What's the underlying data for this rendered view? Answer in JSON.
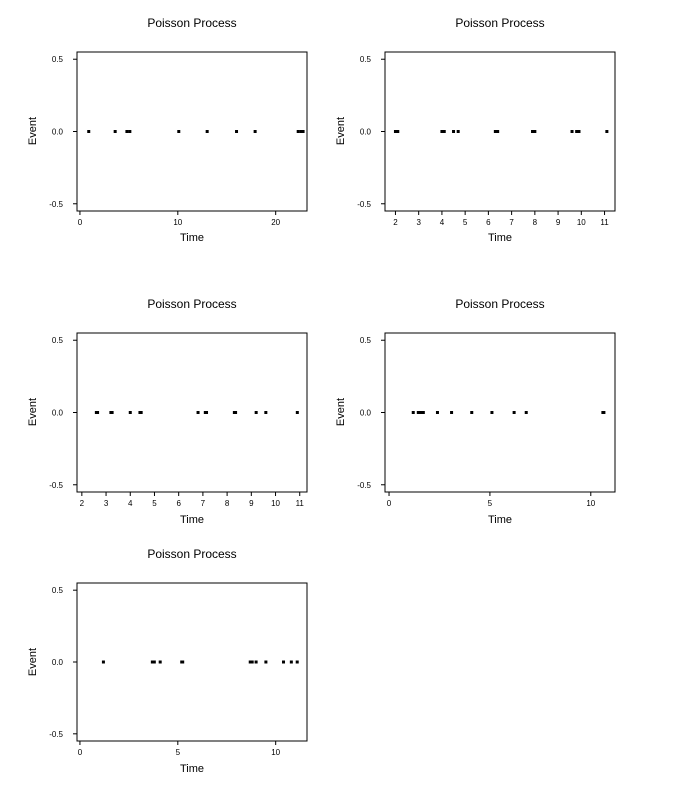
{
  "chart_data": [
    {
      "type": "scatter",
      "title": "Poisson Process",
      "xlabel": "Time",
      "ylabel": "Event",
      "xlim": [
        -0.3,
        23.2
      ],
      "ylim": [
        -0.55,
        0.55
      ],
      "xticks": [
        0,
        10,
        20
      ],
      "yticks": [
        0.5,
        0.0,
        -0.5
      ],
      "ytick_labels": [
        "0.5",
        "0.0",
        "-0.5"
      ],
      "x": [
        0.9,
        3.6,
        4.8,
        5.1,
        10.1,
        13.0,
        16.0,
        17.9,
        22.3,
        22.6,
        22.8
      ],
      "y": [
        0,
        0,
        0,
        0,
        0,
        0,
        0,
        0,
        0,
        0,
        0
      ]
    },
    {
      "type": "scatter",
      "title": "Poisson Process",
      "xlabel": "Time",
      "ylabel": "Event",
      "xlim": [
        1.55,
        11.45
      ],
      "ylim": [
        -0.55,
        0.55
      ],
      "xticks": [
        2,
        3,
        4,
        5,
        6,
        7,
        8,
        9,
        10,
        11
      ],
      "yticks": [
        0.5,
        0.0,
        -0.5
      ],
      "ytick_labels": [
        "0.5",
        "0.0",
        "-0.5"
      ],
      "x": [
        2.0,
        2.1,
        4.0,
        4.1,
        4.5,
        4.7,
        6.3,
        6.4,
        7.9,
        8.0,
        9.6,
        9.8,
        9.9,
        11.1
      ],
      "y": [
        0,
        0,
        0,
        0,
        0,
        0,
        0,
        0,
        0,
        0,
        0,
        0,
        0,
        0
      ]
    },
    {
      "type": "scatter",
      "title": "Poisson Process",
      "xlabel": "Time",
      "ylabel": "Event",
      "xlim": [
        1.8,
        11.3
      ],
      "ylim": [
        -0.55,
        0.55
      ],
      "xticks": [
        2,
        3,
        4,
        5,
        6,
        7,
        8,
        9,
        10,
        11
      ],
      "yticks": [
        0.5,
        0.0,
        -0.5
      ],
      "ytick_labels": [
        "0.5",
        "0.0",
        "-0.5"
      ],
      "x": [
        2.6,
        2.65,
        3.2,
        3.25,
        4.0,
        4.4,
        4.45,
        6.8,
        7.1,
        7.15,
        8.3,
        8.35,
        9.2,
        9.6,
        10.9
      ],
      "y": [
        0,
        0,
        0,
        0,
        0,
        0,
        0,
        0,
        0,
        0,
        0,
        0,
        0,
        0,
        0
      ]
    },
    {
      "type": "scatter",
      "title": "Poisson Process",
      "xlabel": "Time",
      "ylabel": "Event",
      "xlim": [
        -0.2,
        11.2
      ],
      "ylim": [
        -0.55,
        0.55
      ],
      "xticks": [
        0,
        5,
        10
      ],
      "yticks": [
        0.5,
        0.0,
        -0.5
      ],
      "ytick_labels": [
        "0.5",
        "0.0",
        "-0.5"
      ],
      "x": [
        1.2,
        1.45,
        1.55,
        1.6,
        1.7,
        2.4,
        3.1,
        4.1,
        5.1,
        6.2,
        6.8,
        10.6,
        10.65
      ],
      "y": [
        0,
        0,
        0,
        0,
        0,
        0,
        0,
        0,
        0,
        0,
        0,
        0,
        0
      ]
    },
    {
      "type": "scatter",
      "title": "Poisson Process",
      "xlabel": "Time",
      "ylabel": "Event",
      "xlim": [
        -0.15,
        11.6
      ],
      "ylim": [
        -0.55,
        0.55
      ],
      "xticks": [
        0,
        5,
        10
      ],
      "yticks": [
        0.5,
        0.0,
        -0.5
      ],
      "ytick_labels": [
        "0.5",
        "0.0",
        "-0.5"
      ],
      "x": [
        1.2,
        3.7,
        3.8,
        4.1,
        5.2,
        5.25,
        8.7,
        8.8,
        9.0,
        9.5,
        10.4,
        10.8,
        11.1
      ],
      "y": [
        0,
        0,
        0,
        0,
        0,
        0,
        0,
        0,
        0,
        0,
        0,
        0,
        0
      ]
    }
  ]
}
